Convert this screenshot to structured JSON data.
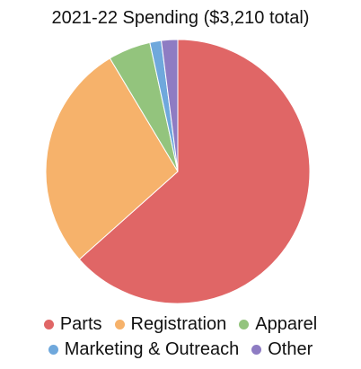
{
  "chart_data": {
    "type": "pie",
    "title": "2021-22 Spending ($3,210 total)",
    "categories": [
      "Parts",
      "Registration",
      "Apparel",
      "Marketing & Outreach",
      "Other"
    ],
    "values": [
      63.4,
      28.0,
      5.2,
      1.4,
      2.0
    ],
    "value_unit": "percent of total",
    "start_angle_deg": 0,
    "direction": "clockwise",
    "legend_position": "bottom",
    "colors": [
      "#e06666",
      "#f6b26b",
      "#93c47d",
      "#6fa8dc",
      "#8e7cc3"
    ]
  }
}
